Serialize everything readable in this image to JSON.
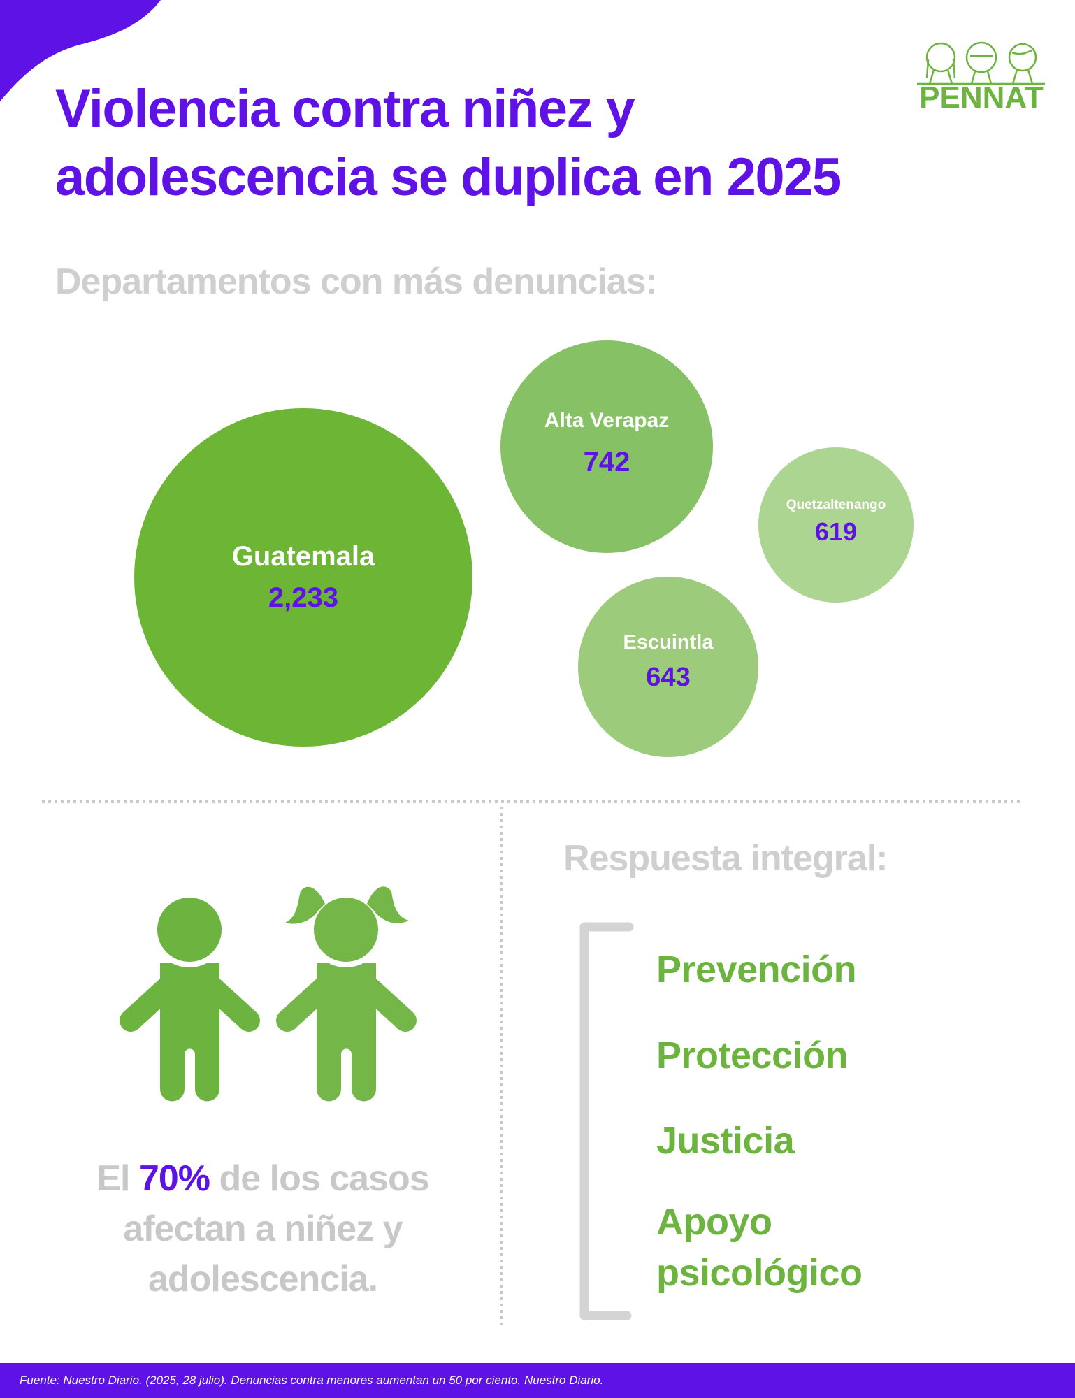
{
  "title": {
    "line1": "Violencia contra niñez y",
    "line2": "adolescencia se duplica en 2025"
  },
  "logo": {
    "text": "PENNAT"
  },
  "departments": {
    "heading": "Departamentos con más denuncias:",
    "items": [
      {
        "name": "Guatemala",
        "value": "2,233"
      },
      {
        "name": "Alta Verapaz",
        "value": "742"
      },
      {
        "name": "Quetzaltenango",
        "value": "619"
      },
      {
        "name": "Escuintla",
        "value": "643"
      }
    ]
  },
  "stat": {
    "prefix": "El",
    "percent": "70%",
    "rest1": "de los casos",
    "line2": "afectan a niñez y",
    "line3": "adolescencia."
  },
  "response": {
    "heading": "Respuesta integral:",
    "items": [
      "Prevención",
      "Protección",
      "Justicia",
      "Apoyo",
      "psicológico"
    ]
  },
  "footer": {
    "source": "Fuente: Nuestro Diario. (2025, 28 julio). Denuncias contra menores aumentan un 50 por ciento. Nuestro Diario."
  },
  "colors": {
    "purple": "#5f12e6",
    "green": "#6db535",
    "gray": "#c8c8c8"
  }
}
